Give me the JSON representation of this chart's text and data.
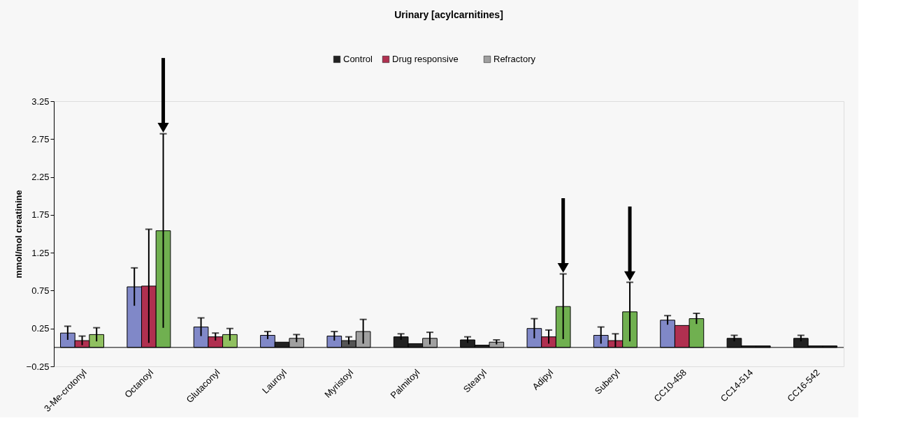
{
  "chart_data": {
    "type": "bar",
    "title": "Urinary [acylcarnitines]",
    "ylabel": "mmol/mol creatinine",
    "categories": [
      "3-Me-crotonyl",
      "Octanoyl",
      "Glutaconyl",
      "Lauroyl",
      "Myristoyl",
      "Palmitoyl",
      "Stearyl",
      "Adipyl",
      "Suberyl",
      "CC10-458",
      "CC14-514",
      "CC16-542"
    ],
    "series": [
      {
        "name": "Control",
        "color": "#222222",
        "colors": [
          "#8088c8",
          "#8088c8",
          "#8088c8",
          "#8088c8",
          "#8088c8",
          "#222222",
          "#222222",
          "#8088c8",
          "#8088c8",
          "#8088c8",
          "#222222",
          "#222222"
        ],
        "values": [
          0.19,
          0.8,
          0.27,
          0.16,
          0.15,
          0.14,
          0.1,
          0.25,
          0.16,
          0.36,
          0.12,
          0.12
        ],
        "errors": [
          0.09,
          0.25,
          0.12,
          0.05,
          0.06,
          0.04,
          0.04,
          0.13,
          0.11,
          0.06,
          0.04,
          0.04
        ]
      },
      {
        "name": "Drug responsive",
        "color": "#b03050",
        "colors": [
          "#b03050",
          "#b03050",
          "#b03050",
          "#222222",
          "#555555",
          "#222222",
          "#222222",
          "#b03050",
          "#b03050",
          "#b03050",
          "#222222",
          "#222222"
        ],
        "values": [
          0.09,
          0.81,
          0.14,
          0.07,
          0.09,
          0.05,
          0.03,
          0.14,
          0.09,
          0.29,
          0.02,
          0.02
        ],
        "errors": [
          0.06,
          0.75,
          0.05,
          null,
          0.05,
          null,
          null,
          0.09,
          0.09,
          null,
          null,
          null
        ]
      },
      {
        "name": "Refractory",
        "color": "#a0a0a0",
        "colors": [
          "#90c060",
          "#70b050",
          "#90c060",
          "#a0a0a0",
          "#a0a0a0",
          "#a0a0a0",
          "#a0a0a0",
          "#70b050",
          "#70b050",
          "#70b050",
          "#222222",
          "#222222"
        ],
        "values": [
          0.17,
          1.54,
          0.17,
          0.12,
          0.21,
          0.12,
          0.07,
          0.54,
          0.47,
          0.38,
          0.02,
          0.02
        ],
        "errors": [
          0.09,
          1.28,
          0.08,
          0.05,
          0.16,
          0.08,
          0.03,
          0.43,
          0.39,
          0.07,
          null,
          null
        ]
      }
    ],
    "ylim": [
      -0.25,
      3.25
    ],
    "yticks": [
      -0.25,
      0.25,
      0.75,
      1.25,
      1.75,
      2.25,
      2.75,
      3.25
    ],
    "ref_lines": [
      {
        "axis": "y",
        "value": 0
      }
    ],
    "grid": false,
    "legend": "top"
  }
}
